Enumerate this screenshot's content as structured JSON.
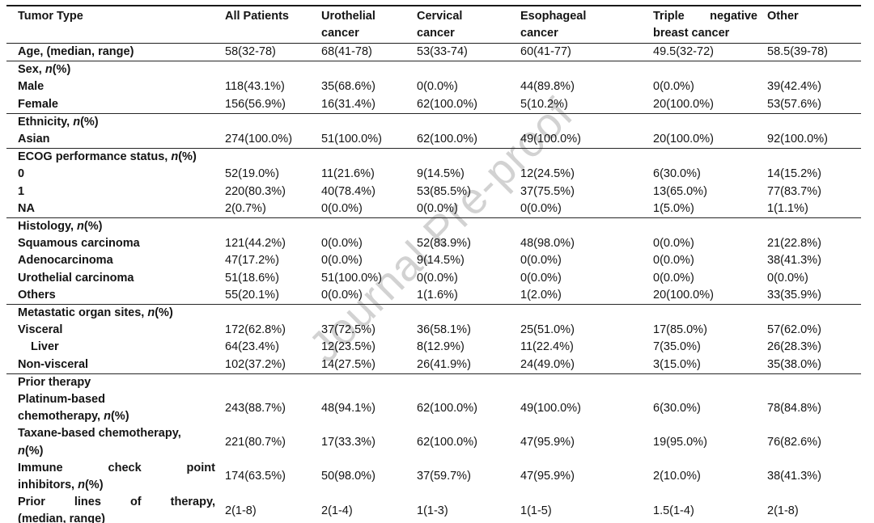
{
  "watermark": "Journal Pre-proof",
  "table": {
    "columns": [
      "Tumor Type",
      "All Patients",
      "Urothelial\ncancer",
      "Cervical\ncancer",
      "Esophageal\ncancer",
      "Triple negative\nbreast cancer",
      "Other"
    ],
    "sections": [
      {
        "rows": [
          {
            "label": "Age, (median, range)",
            "values": [
              "58(32-78)",
              "68(41-78)",
              "53(33-74)",
              "60(41-77)",
              "49.5(32-72)",
              "58.5(39-78)"
            ]
          }
        ]
      },
      {
        "rows": [
          {
            "label": "Sex, n(%)",
            "section_header": true
          },
          {
            "label": "Male",
            "values": [
              "118(43.1%)",
              "35(68.6%)",
              "0(0.0%)",
              "44(89.8%)",
              "0(0.0%)",
              "39(42.4%)"
            ]
          },
          {
            "label": "Female",
            "values": [
              "156(56.9%)",
              "16(31.4%)",
              "62(100.0%)",
              "5(10.2%)",
              "20(100.0%)",
              "53(57.6%)"
            ]
          }
        ]
      },
      {
        "rows": [
          {
            "label": "Ethnicity, n(%)",
            "section_header": true
          },
          {
            "label": "Asian",
            "values": [
              "274(100.0%)",
              "51(100.0%)",
              "62(100.0%)",
              "49(100.0%)",
              "20(100.0%)",
              "92(100.0%)"
            ]
          }
        ]
      },
      {
        "rows": [
          {
            "label": "ECOG performance status, n(%)",
            "section_header": true
          },
          {
            "label": "0",
            "values": [
              "52(19.0%)",
              "11(21.6%)",
              "9(14.5%)",
              "12(24.5%)",
              "6(30.0%)",
              "14(15.2%)"
            ]
          },
          {
            "label": "1",
            "values": [
              "220(80.3%)",
              "40(78.4%)",
              "53(85.5%)",
              "37(75.5%)",
              "13(65.0%)",
              "77(83.7%)"
            ]
          },
          {
            "label": "NA",
            "values": [
              "2(0.7%)",
              "0(0.0%)",
              "0(0.0%)",
              "0(0.0%)",
              "1(5.0%)",
              "1(1.1%)"
            ]
          }
        ]
      },
      {
        "rows": [
          {
            "label": "Histology, n(%)",
            "section_header": true
          },
          {
            "label": "Squamous carcinoma",
            "values": [
              "121(44.2%)",
              "0(0.0%)",
              "52(83.9%)",
              "48(98.0%)",
              "0(0.0%)",
              "21(22.8%)"
            ]
          },
          {
            "label": "Adenocarcinoma",
            "values": [
              "47(17.2%)",
              "0(0.0%)",
              "9(14.5%)",
              "0(0.0%)",
              "0(0.0%)",
              "38(41.3%)"
            ]
          },
          {
            "label": "Urothelial carcinoma",
            "values": [
              "51(18.6%)",
              "51(100.0%)",
              "0(0.0%)",
              "0(0.0%)",
              "0(0.0%)",
              "0(0.0%)"
            ]
          },
          {
            "label": "Others",
            "values": [
              "55(20.1%)",
              "0(0.0%)",
              "1(1.6%)",
              "1(2.0%)",
              "20(100.0%)",
              "33(35.9%)"
            ]
          }
        ]
      },
      {
        "rows": [
          {
            "label": "Metastatic organ sites, n(%)",
            "section_header": true
          },
          {
            "label": "Visceral",
            "values": [
              "172(62.8%)",
              "37(72.5%)",
              "36(58.1%)",
              "25(51.0%)",
              "17(85.0%)",
              "57(62.0%)"
            ]
          },
          {
            "label": "Liver",
            "indent": true,
            "values": [
              "64(23.4%)",
              "12(23.5%)",
              "8(12.9%)",
              "11(22.4%)",
              "7(35.0%)",
              "26(28.3%)"
            ]
          },
          {
            "label": "Non-visceral",
            "values": [
              "102(37.2%)",
              "14(27.5%)",
              "26(41.9%)",
              "24(49.0%)",
              "3(15.0%)",
              "35(38.0%)"
            ]
          }
        ]
      },
      {
        "rows": [
          {
            "label": "Prior therapy",
            "section_header": true
          },
          {
            "label": "Platinum-based\nchemotherapy, n(%)",
            "values": [
              "243(88.7%)",
              "48(94.1%)",
              "62(100.0%)",
              "49(100.0%)",
              "6(30.0%)",
              "78(84.8%)"
            ]
          },
          {
            "label": "Taxane-based chemotherapy,\nn(%)",
            "values": [
              "221(80.7%)",
              "17(33.3%)",
              "62(100.0%)",
              "47(95.9%)",
              "19(95.0%)",
              "76(82.6%)"
            ]
          },
          {
            "label": "Immune check point\ninhibitors, n(%)",
            "justify": true,
            "values": [
              "174(63.5%)",
              "50(98.0%)",
              "37(59.7%)",
              "47(95.9%)",
              "2(10.0%)",
              "38(41.3%)"
            ]
          },
          {
            "label": "Prior lines of therapy,\n(median, range)",
            "justify": true,
            "values": [
              "2(1-8)",
              "2(1-4)",
              "1(1-3)",
              "1(1-5)",
              "1.5(1-4)",
              "2(1-8)"
            ]
          }
        ]
      }
    ]
  }
}
